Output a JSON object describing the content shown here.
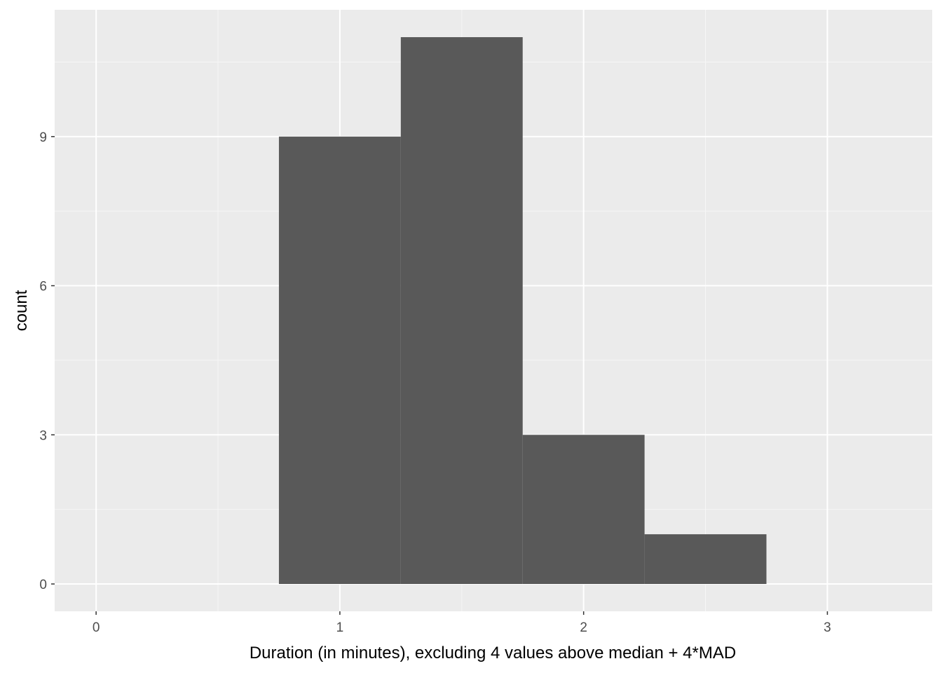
{
  "chart_data": {
    "type": "bar",
    "subtype": "histogram",
    "title": "",
    "xlabel": "Duration (in minutes), excluding 4 values above median + 4*MAD",
    "ylabel": "count",
    "bin_width": 0.5,
    "bins": [
      {
        "x_start": 0.75,
        "x_end": 1.25,
        "count": 9
      },
      {
        "x_start": 1.25,
        "x_end": 1.75,
        "count": 11
      },
      {
        "x_start": 1.75,
        "x_end": 2.25,
        "count": 3
      },
      {
        "x_start": 2.25,
        "x_end": 2.75,
        "count": 1
      }
    ],
    "xlim": [
      -0.17,
      3.43
    ],
    "ylim": [
      -0.55,
      11.55
    ],
    "x_ticks": [
      0,
      1,
      2,
      3
    ],
    "x_tick_labels": [
      "0",
      "1",
      "2",
      "3"
    ],
    "y_ticks": [
      0,
      3,
      6,
      9
    ],
    "y_tick_labels": [
      "0",
      "3",
      "6",
      "9"
    ],
    "x_minor_ticks": [
      0.5,
      1.5,
      2.5
    ],
    "y_minor_ticks": [
      1.5,
      4.5,
      7.5,
      10.5
    ],
    "grid": true,
    "legend": "none",
    "colors": {
      "panel_background": "#ebebeb",
      "grid_major": "#ffffff",
      "grid_minor": "#f6f6f6",
      "bar_fill": "#595959",
      "tick_text": "#4d4d4d",
      "tick_mark": "#333333",
      "axis_title": "#000000"
    }
  }
}
